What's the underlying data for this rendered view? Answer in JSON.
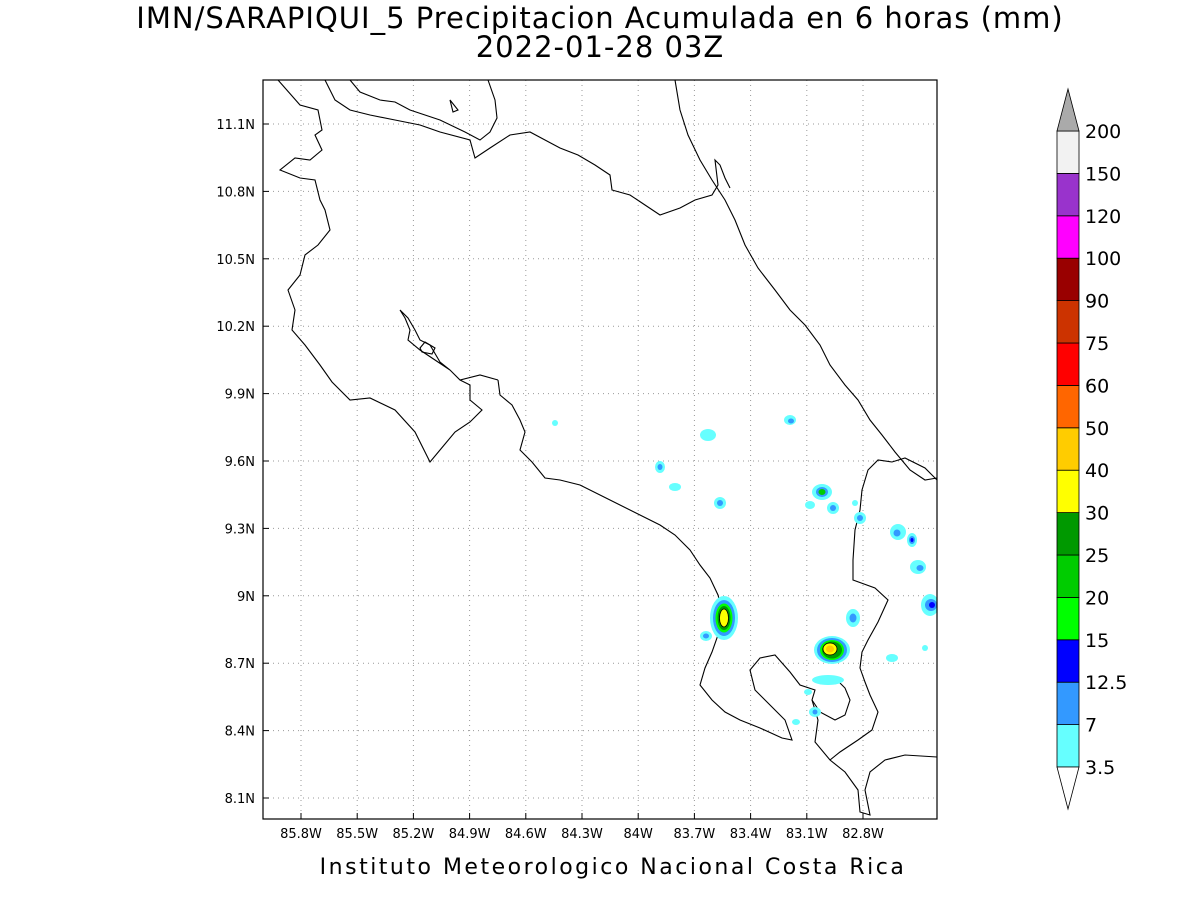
{
  "title": {
    "line1": "IMN/SARAPIQUI_5 Precipitacion Acumulada en 6 horas (mm)",
    "line2": "2022-01-28 03Z"
  },
  "footer": {
    "credit": "Instituto Meteorologico Nacional Costa Rica"
  },
  "axes": {
    "x_ticks": [
      "85.8W",
      "85.5W",
      "85.2W",
      "84.9W",
      "84.6W",
      "84.3W",
      "84W",
      "83.7W",
      "83.4W",
      "83.1W",
      "82.8W"
    ],
    "y_ticks": [
      "11.1N",
      "10.8N",
      "10.5N",
      "10.2N",
      "9.9N",
      "9.6N",
      "9.3N",
      "9N",
      "8.7N",
      "8.4N",
      "8.1N"
    ],
    "grid": "dotted"
  },
  "colorbar": {
    "levels": [
      {
        "label": "3.5",
        "color": "#66ffff"
      },
      {
        "label": "7",
        "color": "#3399ff"
      },
      {
        "label": "12.5",
        "color": "#0000ff"
      },
      {
        "label": "15",
        "color": "#00ff00"
      },
      {
        "label": "20",
        "color": "#00cc00"
      },
      {
        "label": "25",
        "color": "#009900"
      },
      {
        "label": "30",
        "color": "#ffff00"
      },
      {
        "label": "40",
        "color": "#ffcc00"
      },
      {
        "label": "50",
        "color": "#ff6600"
      },
      {
        "label": "60",
        "color": "#ff0000"
      },
      {
        "label": "75",
        "color": "#cc3300"
      },
      {
        "label": "90",
        "color": "#990000"
      },
      {
        "label": "100",
        "color": "#ff00ff"
      },
      {
        "label": "120",
        "color": "#9933cc"
      },
      {
        "label": "150",
        "color": "#f2f2f2"
      },
      {
        "label": "200",
        "color": "#aaaaaa"
      }
    ]
  },
  "precip_cells": [
    {
      "name": "precip-cell-osa-north",
      "level": "30"
    },
    {
      "name": "precip-cell-coto",
      "level": "40"
    },
    {
      "name": "precip-cell-talamanca",
      "level": "20"
    },
    {
      "name": "precip-cell-east-coast",
      "level": "12.5"
    },
    {
      "name": "precip-cell-scattered",
      "level": "7"
    }
  ]
}
